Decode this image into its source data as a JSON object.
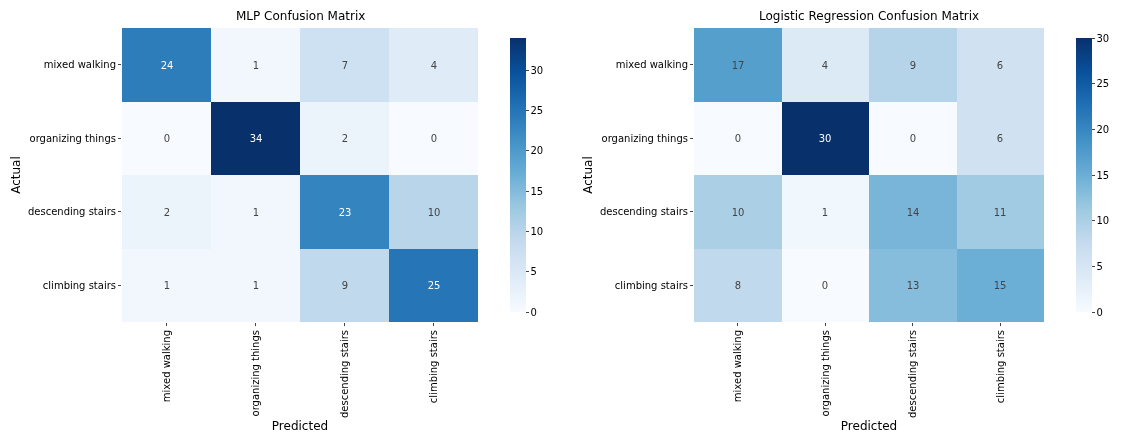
{
  "chart_data": [
    {
      "type": "heatmap",
      "title": "MLP Confusion Matrix",
      "xlabel": "Predicted",
      "ylabel": "Actual",
      "categories": [
        "mixed walking",
        "organizing things",
        "descending stairs",
        "climbing stairs"
      ],
      "y_categories": [
        "mixed walking",
        "organizing things",
        "descending stairs",
        "climbing stairs"
      ],
      "cells": [
        [
          24,
          1,
          7,
          4
        ],
        [
          0,
          34,
          2,
          0
        ],
        [
          2,
          1,
          23,
          10
        ],
        [
          1,
          1,
          9,
          25
        ]
      ],
      "clim": [
        0,
        34
      ],
      "cticks": [
        0,
        5,
        10,
        15,
        20,
        25,
        30
      ],
      "data_labels": true
    },
    {
      "type": "heatmap",
      "title": "Logistic Regression Confusion Matrix",
      "xlabel": "Predicted",
      "ylabel": "Actual",
      "categories": [
        "mixed walking",
        "organizing things",
        "descending stairs",
        "climbing stairs"
      ],
      "y_categories": [
        "mixed walking",
        "organizing things",
        "descending stairs",
        "climbing stairs"
      ],
      "cells": [
        [
          17,
          4,
          9,
          6
        ],
        [
          0,
          30,
          0,
          6
        ],
        [
          10,
          1,
          14,
          11
        ],
        [
          8,
          0,
          13,
          15
        ]
      ],
      "clim": [
        0,
        30
      ],
      "cticks": [
        0,
        5,
        10,
        15,
        20,
        25,
        30
      ],
      "data_labels": true
    }
  ]
}
